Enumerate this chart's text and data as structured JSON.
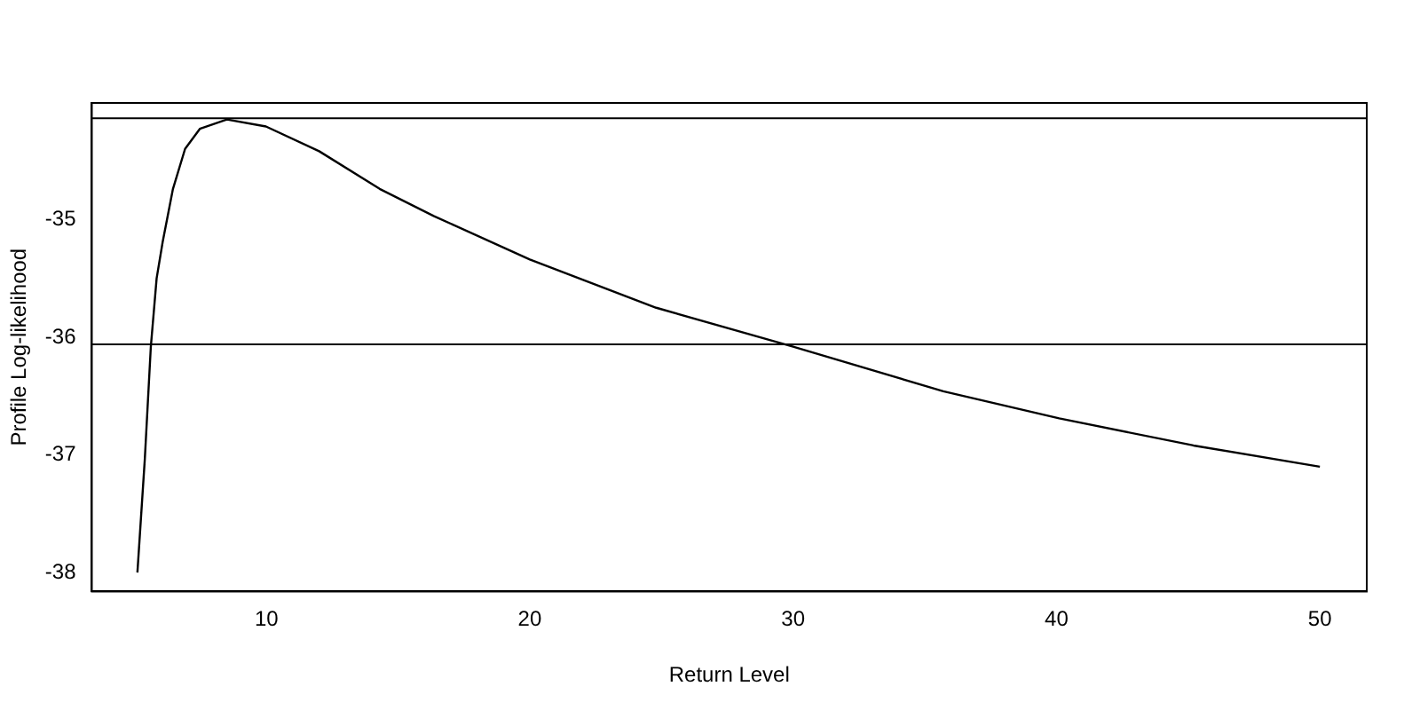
{
  "chart_data": {
    "type": "line",
    "xlabel": "Return Level",
    "ylabel": "Profile Log-likelihood",
    "series": [
      {
        "color": "#000000",
        "x": [
          5.1,
          5.38,
          5.61,
          5.83,
          6.06,
          6.45,
          6.91,
          7.47,
          8.5,
          9.98,
          12.0,
          14.3,
          16.35,
          20.0,
          24.8,
          30.0,
          35.7,
          40.1,
          45.2,
          50.0
        ],
        "values": [
          -38.0,
          -37.04,
          -36.08,
          -35.5,
          -35.19,
          -34.74,
          -34.4,
          -34.23,
          -34.15,
          -34.21,
          -34.42,
          -34.74,
          -34.97,
          -35.34,
          -35.75,
          -36.08,
          -36.46,
          -36.69,
          -36.92,
          -37.1
        ]
      }
    ],
    "xlim": [
      3.37,
      51.78
    ],
    "ylim": [
      -38.16,
      -34.01
    ],
    "xticks": [
      10,
      20,
      30,
      40,
      50
    ],
    "yticks": [
      -38,
      -37,
      -36,
      -35
    ],
    "ref_lines": [
      {
        "axis": "y",
        "value": -34.14,
        "color": "#000000"
      },
      {
        "axis": "y",
        "value": -36.06,
        "color": "#000000"
      }
    ],
    "grid": false,
    "legend": false,
    "marker": "none",
    "line_style": "solid"
  }
}
